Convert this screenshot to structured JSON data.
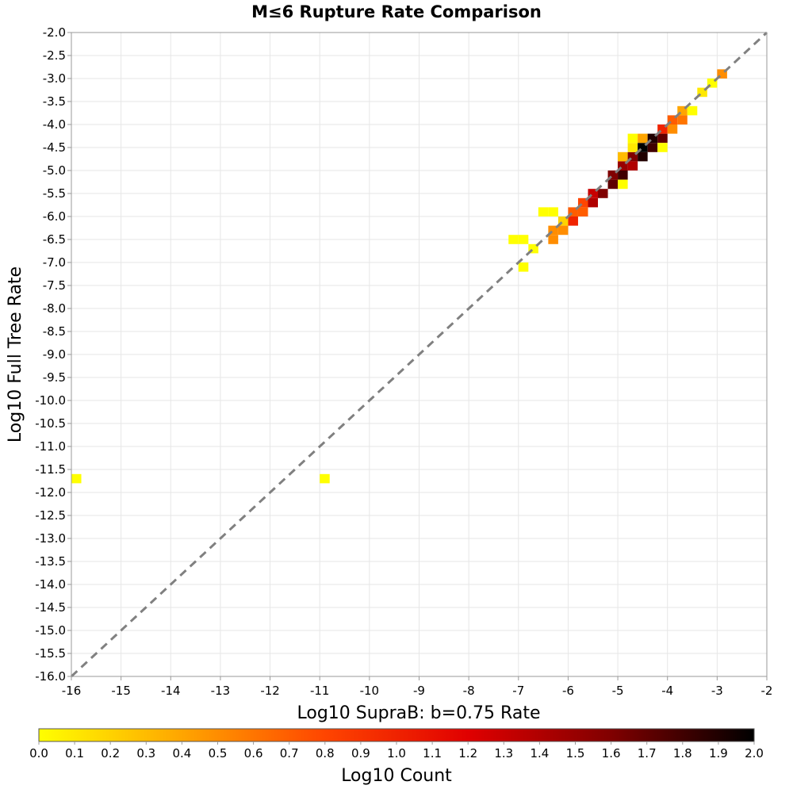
{
  "chart_data": {
    "type": "heatmap",
    "title": "M≤6 Rupture Rate Comparison",
    "xlabel": "Log10 SupraB: b=0.75 Rate",
    "ylabel": "Log10 Full Tree Rate",
    "xlim": [
      -16,
      -2
    ],
    "ylim": [
      -16,
      -2
    ],
    "x_ticks": [
      "-16",
      "-15",
      "-14",
      "-13",
      "-12",
      "-11",
      "-10",
      "-9",
      "-8",
      "-7",
      "-6",
      "-5",
      "-4",
      "-3",
      "-2"
    ],
    "y_ticks": [
      "-2.0",
      "-2.5",
      "-3.0",
      "-3.5",
      "-4.0",
      "-4.5",
      "-5.0",
      "-5.5",
      "-6.0",
      "-6.5",
      "-7.0",
      "-7.5",
      "-8.0",
      "-8.5",
      "-9.0",
      "-9.5",
      "-10.0",
      "-10.5",
      "-11.0",
      "-11.5",
      "-12.0",
      "-12.5",
      "-13.0",
      "-13.5",
      "-14.0",
      "-14.5",
      "-15.0",
      "-15.5",
      "-16.0"
    ],
    "grid": true,
    "reference_line": "y = x",
    "cell_size": 0.2,
    "colorbar": {
      "label": "Log10 Count",
      "range": [
        0,
        2
      ],
      "ticks": [
        "0.0",
        "0.1",
        "0.2",
        "0.3",
        "0.4",
        "0.5",
        "0.6",
        "0.7",
        "0.8",
        "0.9",
        "1.0",
        "1.1",
        "1.2",
        "1.3",
        "1.4",
        "1.5",
        "1.6",
        "1.7",
        "1.8",
        "1.9",
        "2.0"
      ],
      "colors": [
        "#ffff00",
        "#ffa500",
        "#ff4500",
        "#e00000",
        "#800000",
        "#000000"
      ]
    },
    "cells": [
      {
        "x": -15.9,
        "y": -11.7,
        "v": 0.0
      },
      {
        "x": -10.9,
        "y": -11.7,
        "v": 0.0
      },
      {
        "x": -7.1,
        "y": -6.5,
        "v": 0.0
      },
      {
        "x": -6.9,
        "y": -6.5,
        "v": 0.0
      },
      {
        "x": -6.9,
        "y": -7.1,
        "v": 0.0
      },
      {
        "x": -6.7,
        "y": -6.7,
        "v": 0.0
      },
      {
        "x": -6.5,
        "y": -5.9,
        "v": 0.0
      },
      {
        "x": -6.3,
        "y": -5.9,
        "v": 0.0
      },
      {
        "x": -6.3,
        "y": -6.3,
        "v": 0.5
      },
      {
        "x": -6.3,
        "y": -6.5,
        "v": 0.5
      },
      {
        "x": -6.1,
        "y": -6.1,
        "v": 0.2
      },
      {
        "x": -6.1,
        "y": -6.3,
        "v": 0.5
      },
      {
        "x": -5.9,
        "y": -5.9,
        "v": 0.7
      },
      {
        "x": -5.9,
        "y": -6.1,
        "v": 1.0
      },
      {
        "x": -5.7,
        "y": -5.7,
        "v": 0.8
      },
      {
        "x": -5.7,
        "y": -5.9,
        "v": 0.7
      },
      {
        "x": -5.5,
        "y": -5.5,
        "v": 1.3
      },
      {
        "x": -5.5,
        "y": -5.7,
        "v": 1.4
      },
      {
        "x": -5.3,
        "y": -5.5,
        "v": 1.6
      },
      {
        "x": -5.1,
        "y": -5.3,
        "v": 1.7
      },
      {
        "x": -5.1,
        "y": -5.1,
        "v": 1.6
      },
      {
        "x": -4.9,
        "y": -5.1,
        "v": 1.8
      },
      {
        "x": -4.9,
        "y": -4.9,
        "v": 1.5
      },
      {
        "x": -4.9,
        "y": -5.3,
        "v": 0.0
      },
      {
        "x": -4.9,
        "y": -4.7,
        "v": 0.3
      },
      {
        "x": -4.7,
        "y": -4.9,
        "v": 1.4
      },
      {
        "x": -4.7,
        "y": -4.7,
        "v": 1.6
      },
      {
        "x": -4.7,
        "y": -4.5,
        "v": 0.1
      },
      {
        "x": -4.7,
        "y": -4.3,
        "v": 0.0
      },
      {
        "x": -4.5,
        "y": -4.7,
        "v": 1.9
      },
      {
        "x": -4.5,
        "y": -4.5,
        "v": 2.0
      },
      {
        "x": -4.5,
        "y": -4.3,
        "v": 0.4
      },
      {
        "x": -4.3,
        "y": -4.5,
        "v": 1.8
      },
      {
        "x": -4.3,
        "y": -4.3,
        "v": 1.9
      },
      {
        "x": -4.1,
        "y": -4.3,
        "v": 1.7
      },
      {
        "x": -4.1,
        "y": -4.1,
        "v": 1.0
      },
      {
        "x": -4.1,
        "y": -4.5,
        "v": 0.0
      },
      {
        "x": -3.9,
        "y": -4.1,
        "v": 0.5
      },
      {
        "x": -3.9,
        "y": -3.9,
        "v": 0.7
      },
      {
        "x": -3.7,
        "y": -3.9,
        "v": 0.6
      },
      {
        "x": -3.7,
        "y": -3.7,
        "v": 0.4
      },
      {
        "x": -3.5,
        "y": -3.7,
        "v": 0.0
      },
      {
        "x": -3.3,
        "y": -3.3,
        "v": 0.1
      },
      {
        "x": -3.1,
        "y": -3.1,
        "v": 0.0
      },
      {
        "x": -2.9,
        "y": -2.9,
        "v": 0.5
      }
    ]
  }
}
